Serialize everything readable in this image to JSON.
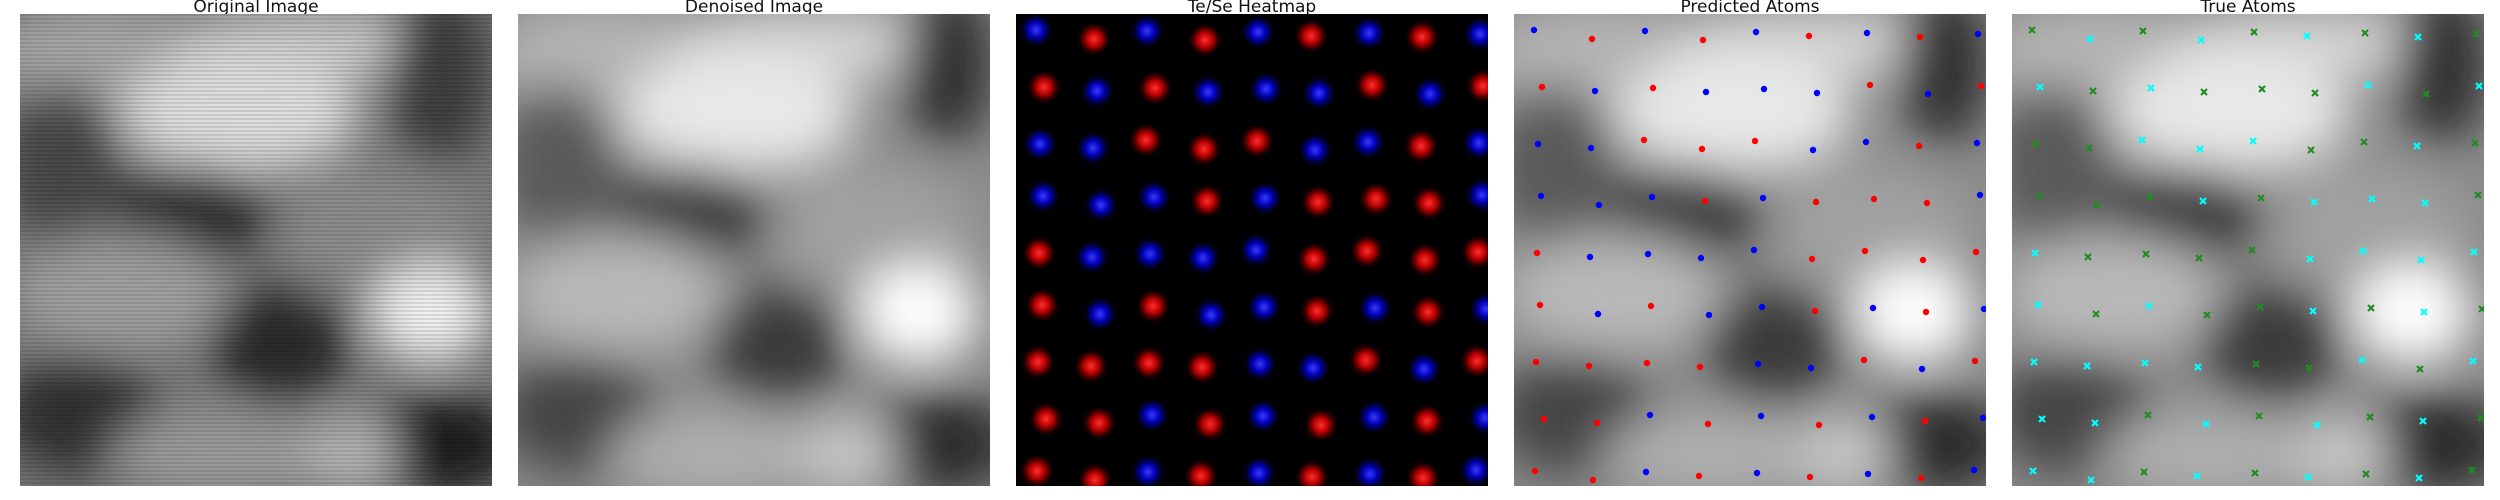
{
  "figure": {
    "panels": [
      {
        "key": "original",
        "title": "Original Image"
      },
      {
        "key": "denoised",
        "title": "Denoised Image"
      },
      {
        "key": "heatmap",
        "title": "Te/Se Heatmap"
      },
      {
        "key": "predicted",
        "title": "Predicted Atoms"
      },
      {
        "key": "truth",
        "title": "True Atoms"
      }
    ],
    "colors": {
      "te": "#e8101a",
      "se": "#1515e8",
      "predicted_te": "#ff0000",
      "predicted_se": "#0000ff",
      "true_te": "#00ffff",
      "true_se": "#228b22",
      "heatmap_bg": "#000000"
    },
    "markers": {
      "predicted": "circle-dot",
      "true": "x-cross"
    }
  }
}
